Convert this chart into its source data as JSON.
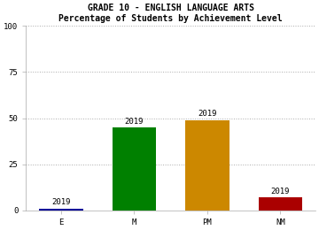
{
  "title_line1": "GRADE 10 - ENGLISH LANGUAGE ARTS",
  "title_line2": "Percentage of Students by Achievement Level",
  "categories": [
    "E",
    "M",
    "PM",
    "NM"
  ],
  "values": [
    1,
    45,
    49,
    7
  ],
  "bar_colors": [
    "#000099",
    "#008000",
    "#CC8800",
    "#AA0000"
  ],
  "bar_labels": [
    "2019",
    "2019",
    "2019",
    "2019"
  ],
  "ylim": [
    0,
    100
  ],
  "yticks": [
    0,
    25,
    50,
    75,
    100
  ],
  "background_color": "#ffffff",
  "plot_bg_color": "#ffffff",
  "title_fontsize": 7.0,
  "tick_fontsize": 6.5,
  "label_fontsize": 6.5,
  "bar_width": 0.6
}
